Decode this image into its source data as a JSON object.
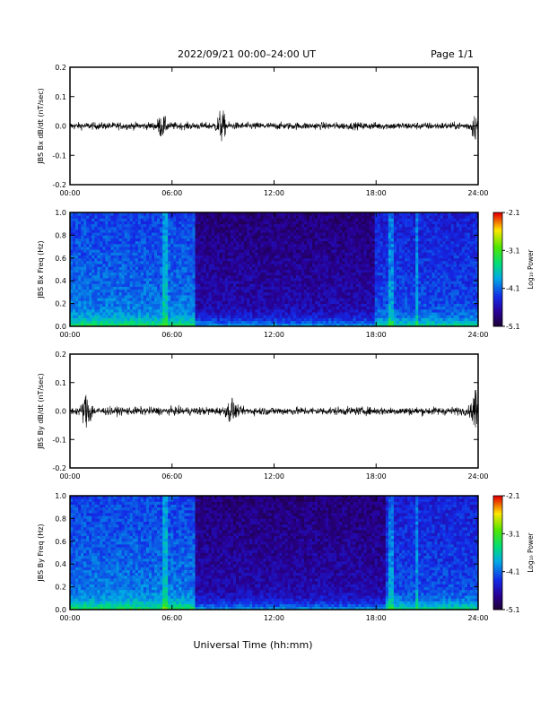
{
  "header": {
    "title": "2022/09/21  00:00–24:00 UT",
    "page": "Page 1/1"
  },
  "footer": {
    "xlabel": "Universal Time (hh:mm)"
  },
  "chart_data": [
    {
      "type": "line",
      "panel": "jbs-bx-dbdt",
      "ylabel": "JBS Bx dB/dt (nT/sec)",
      "xlabel": "",
      "xlim": [
        0,
        24
      ],
      "ylim": [
        -0.2,
        0.2
      ],
      "xticks": [
        "00:00",
        "06:00",
        "12:00",
        "18:00",
        "24:00"
      ],
      "yticks": [
        "0.2",
        "0.1",
        "0.0",
        "-0.1",
        "-0.2"
      ],
      "grid": false,
      "baseline_amplitude": 0.012,
      "bursts": [
        {
          "t": 5.4,
          "amp": 0.03
        },
        {
          "t": 8.9,
          "amp": 0.045
        },
        {
          "t": 23.8,
          "amp": 0.035
        }
      ]
    },
    {
      "type": "heatmap",
      "panel": "jbs-bx-spectrogram",
      "ylabel": "JBS Bx Freq (Hz)",
      "xlabel": "",
      "xlim": [
        0,
        24
      ],
      "ylim": [
        0,
        1.0
      ],
      "xticks": [
        "00:00",
        "06:00",
        "12:00",
        "18:00",
        "24:00"
      ],
      "yticks": [
        "1.0",
        "0.8",
        "0.6",
        "0.4",
        "0.2",
        "0.0"
      ],
      "colorbar": {
        "label": "Log₁₀ Power",
        "range": [
          -5.1,
          -2.1
        ],
        "ticks": [
          "-2.1",
          "-3.1",
          "-4.1",
          "-5.1"
        ]
      },
      "quiet_interval": [
        7.3,
        18.0
      ]
    },
    {
      "type": "line",
      "panel": "jbs-by-dbdt",
      "ylabel": "JBS By dB/dt (nT/sec)",
      "xlabel": "",
      "xlim": [
        0,
        24
      ],
      "ylim": [
        -0.2,
        0.2
      ],
      "xticks": [
        "00:00",
        "06:00",
        "12:00",
        "18:00",
        "24:00"
      ],
      "yticks": [
        "0.2",
        "0.1",
        "0.0",
        "-0.1",
        "-0.2"
      ],
      "grid": false,
      "baseline_amplitude": 0.014,
      "bursts": [
        {
          "t": 1.0,
          "amp": 0.06
        },
        {
          "t": 9.5,
          "amp": 0.035
        },
        {
          "t": 23.9,
          "amp": 0.09
        }
      ]
    },
    {
      "type": "heatmap",
      "panel": "jbs-by-spectrogram",
      "ylabel": "JBS By Freq (Hz)",
      "xlabel": "",
      "xlim": [
        0,
        24
      ],
      "ylim": [
        0,
        1.0
      ],
      "xticks": [
        "00:00",
        "06:00",
        "12:00",
        "18:00",
        "24:00"
      ],
      "yticks": [
        "1.0",
        "0.8",
        "0.6",
        "0.4",
        "0.2",
        "0.0"
      ],
      "colorbar": {
        "label": "Log₁₀ Power",
        "range": [
          -5.1,
          -2.1
        ],
        "ticks": [
          "-2.1",
          "-3.1",
          "-4.1",
          "-5.1"
        ]
      },
      "quiet_interval": [
        7.3,
        18.5
      ]
    }
  ]
}
